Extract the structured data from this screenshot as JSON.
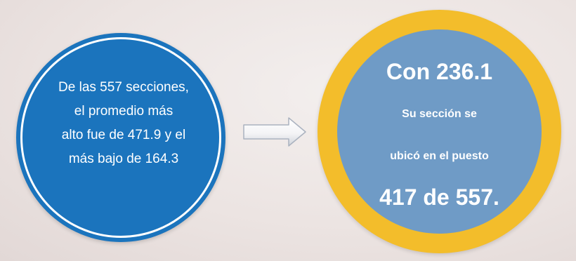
{
  "left_circle": {
    "lines": [
      "De las 557 secciones,",
      "el promedio más",
      "alto fue de 471.9 y el",
      "más bajo de 164.3"
    ],
    "color": "#1b74bd"
  },
  "arrow": {
    "icon": "right-arrow-icon"
  },
  "right_circle": {
    "title": "Con 236.1",
    "line1": "Su sección se",
    "line2": "ubicó en el puesto",
    "rank": "417 de 557.",
    "ring_color": "#f3bd2b",
    "fill_color": "#6f9bc6"
  }
}
